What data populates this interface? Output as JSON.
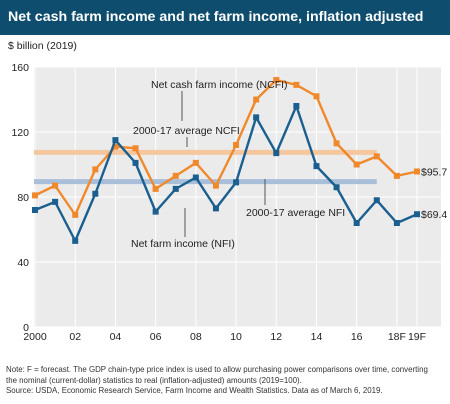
{
  "chart_data": {
    "type": "line",
    "title": "Net cash farm income and net farm income, inflation adjusted",
    "ylabel": "$ billion (2019)",
    "ylim": [
      0,
      160
    ],
    "yticks": [
      0,
      40,
      80,
      120,
      160
    ],
    "grid": true,
    "categories": [
      "2000",
      "2001",
      "2002",
      "2003",
      "2004",
      "2005",
      "2006",
      "2007",
      "2008",
      "2009",
      "2010",
      "2011",
      "2012",
      "2013",
      "2014",
      "2015",
      "2016",
      "2017",
      "2018F",
      "2019F"
    ],
    "xtick_labels": [
      "2000",
      "02",
      "04",
      "06",
      "08",
      "10",
      "12",
      "14",
      "16",
      "18F",
      "19F"
    ],
    "xtick_positions": [
      "2000",
      "2002",
      "2004",
      "2006",
      "2008",
      "2010",
      "2012",
      "2014",
      "2016",
      "2018F",
      "2019F"
    ],
    "series": [
      {
        "name": "Net cash farm income (NCFI)",
        "color": "#f0892b",
        "values": [
          81,
          87,
          69,
          97,
          111,
          110,
          85,
          93,
          101,
          87,
          112,
          140,
          152,
          149,
          142,
          113,
          100,
          105,
          93,
          95.7
        ],
        "end_label": "$95.7"
      },
      {
        "name": "Net farm income (NFI)",
        "color": "#1a5f8f",
        "values": [
          72,
          77,
          53,
          82,
          115,
          101,
          71,
          85,
          92,
          73,
          89,
          129,
          107,
          136,
          99,
          86,
          64,
          78,
          64,
          69.4
        ],
        "end_label": "$69.4"
      }
    ],
    "reference_lines": [
      {
        "name": "2000-17 average NCFI",
        "value": 107.5,
        "color": "#f5c79e",
        "x_start": "2000",
        "x_end": "2017"
      },
      {
        "name": "2000-17 average NFI",
        "value": 89.5,
        "color": "#a9bfd9",
        "x_start": "2000",
        "x_end": "2017"
      }
    ]
  },
  "note": {
    "line1": "Note: F = forecast. The GDP chain-type price index is used to allow purchasing power comparisons over time, converting",
    "line2": "the nominal (current-dollar) statistics to real (inflation-adjusted) amounts (2019=100).",
    "line3": "Source: USDA, Economic Research Service, Farm Income and Wealth Statistics. Data as of March 6, 2019."
  }
}
